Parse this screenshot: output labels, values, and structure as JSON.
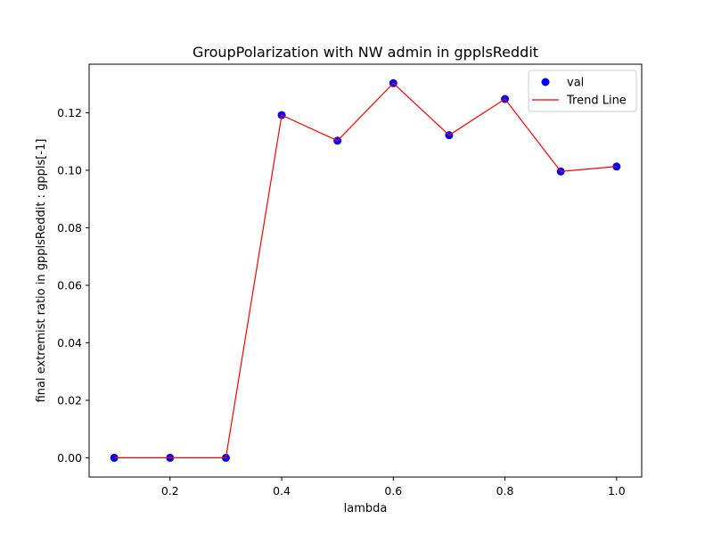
{
  "chart_data": {
    "type": "scatter",
    "title": "GroupPolarization with NW admin in gpplsReddit",
    "xlabel": "lambda",
    "ylabel": "final extremist ratio in  gpplsReddit : gppls[-1]",
    "xlim": [
      0.055,
      1.045
    ],
    "ylim": [
      -0.0067,
      0.1369
    ],
    "xticks": [
      0.2,
      0.4,
      0.6,
      0.8,
      1.0
    ],
    "xtick_labels": [
      "0.2",
      "0.4",
      "0.6",
      "0.8",
      "1.0"
    ],
    "yticks": [
      0.0,
      0.02,
      0.04,
      0.06,
      0.08,
      0.1,
      0.12
    ],
    "ytick_labels": [
      "0.00",
      "0.02",
      "0.04",
      "0.06",
      "0.08",
      "0.10",
      "0.12"
    ],
    "grid": false,
    "legend_position": "top-right",
    "x": [
      0.1,
      0.2,
      0.3,
      0.4,
      0.5,
      0.6,
      0.7,
      0.8,
      0.9,
      1.0
    ],
    "series": [
      {
        "name": "val",
        "kind": "scatter",
        "color": "#0000ff",
        "values": [
          0.0,
          0.0,
          0.0,
          0.1192,
          0.1103,
          0.1303,
          0.1122,
          0.1248,
          0.0996,
          0.1013
        ]
      },
      {
        "name": "Trend Line",
        "kind": "line",
        "color": "#ff0000",
        "values": [
          0.0,
          0.0,
          0.0,
          0.1192,
          0.1103,
          0.1303,
          0.1122,
          0.1248,
          0.0996,
          0.1013
        ]
      }
    ]
  }
}
